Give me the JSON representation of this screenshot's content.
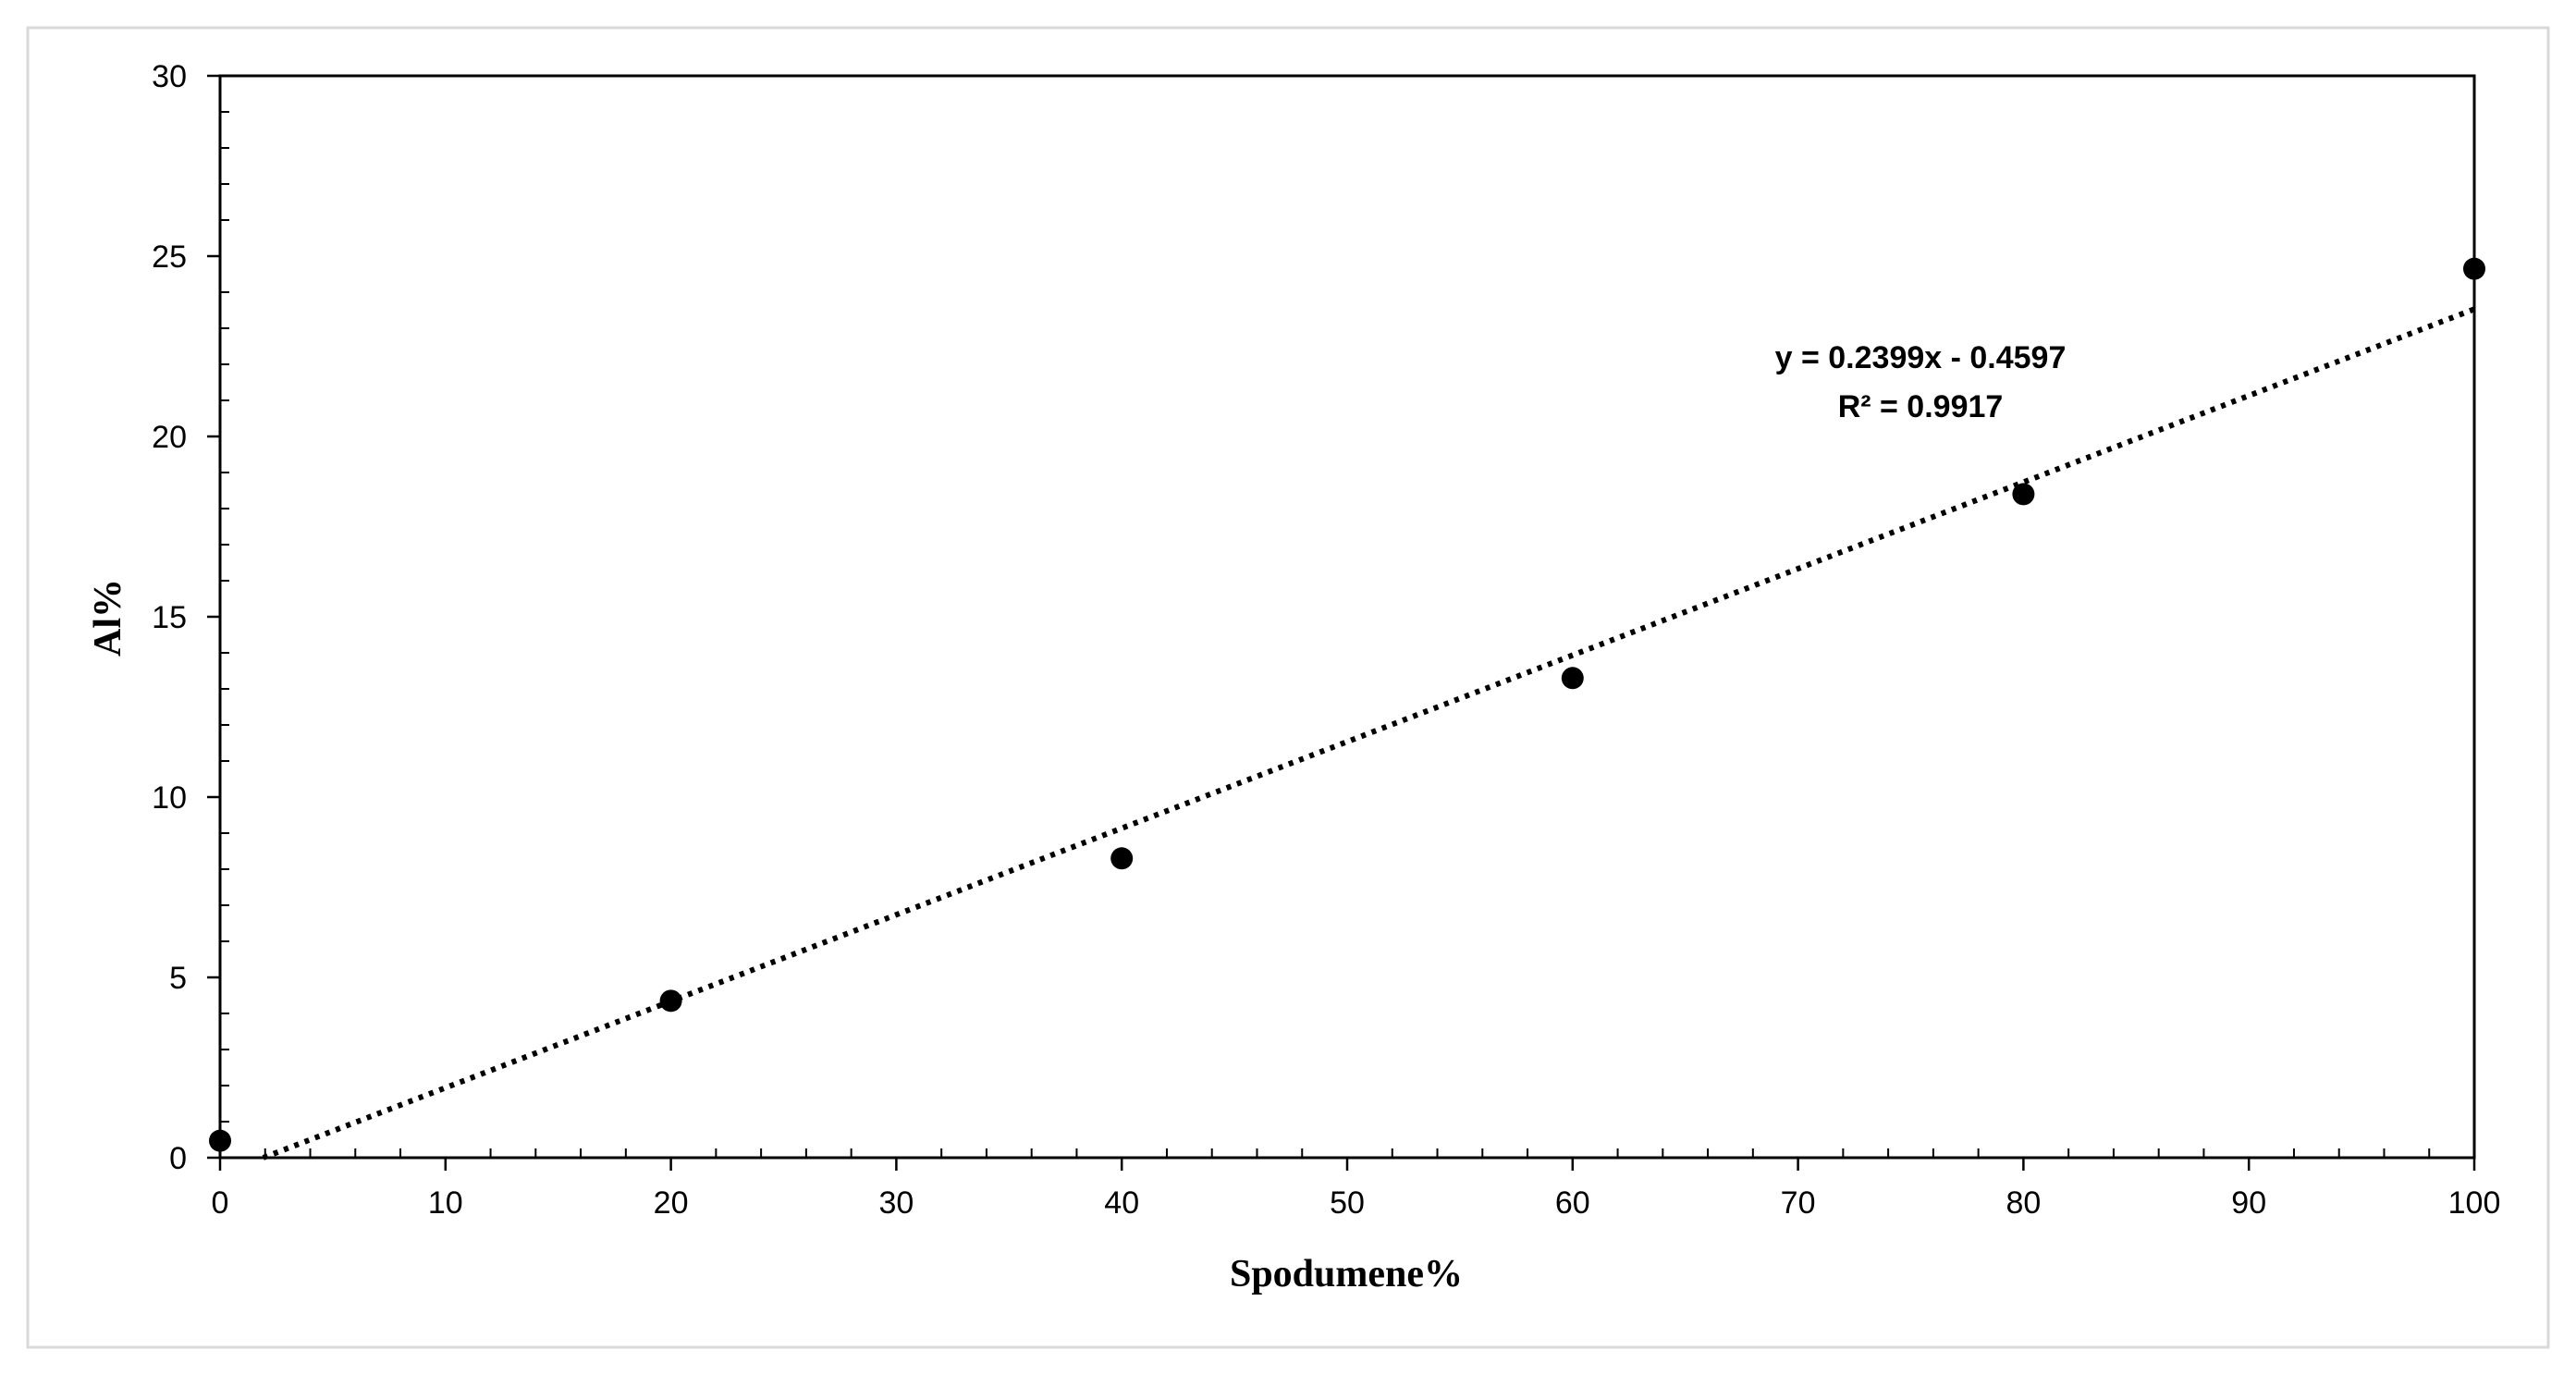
{
  "chart_data": {
    "type": "scatter",
    "xlabel": "Spodumene%",
    "ylabel": "Al%",
    "xlim": [
      0,
      100
    ],
    "ylim": [
      0,
      30
    ],
    "x_ticks": [
      0,
      10,
      20,
      30,
      40,
      50,
      60,
      70,
      80,
      90,
      100
    ],
    "y_ticks": [
      0,
      5,
      10,
      15,
      20,
      25,
      30
    ],
    "x_minor_step": 2,
    "y_minor_step": 1,
    "grid": false,
    "series": [
      {
        "x": [
          0,
          20,
          40,
          60,
          80,
          100
        ],
        "y": [
          0.47,
          4.35,
          8.3,
          13.3,
          18.4,
          24.65
        ],
        "marker": "circle",
        "color": "#000000"
      }
    ],
    "trendline": {
      "type": "linear",
      "slope": 0.2399,
      "intercept": -0.4597,
      "style": "dotted",
      "color": "#000000",
      "equation": "y = 0.2399x - 0.4597",
      "r_squared": "R² = 0.9917"
    }
  }
}
